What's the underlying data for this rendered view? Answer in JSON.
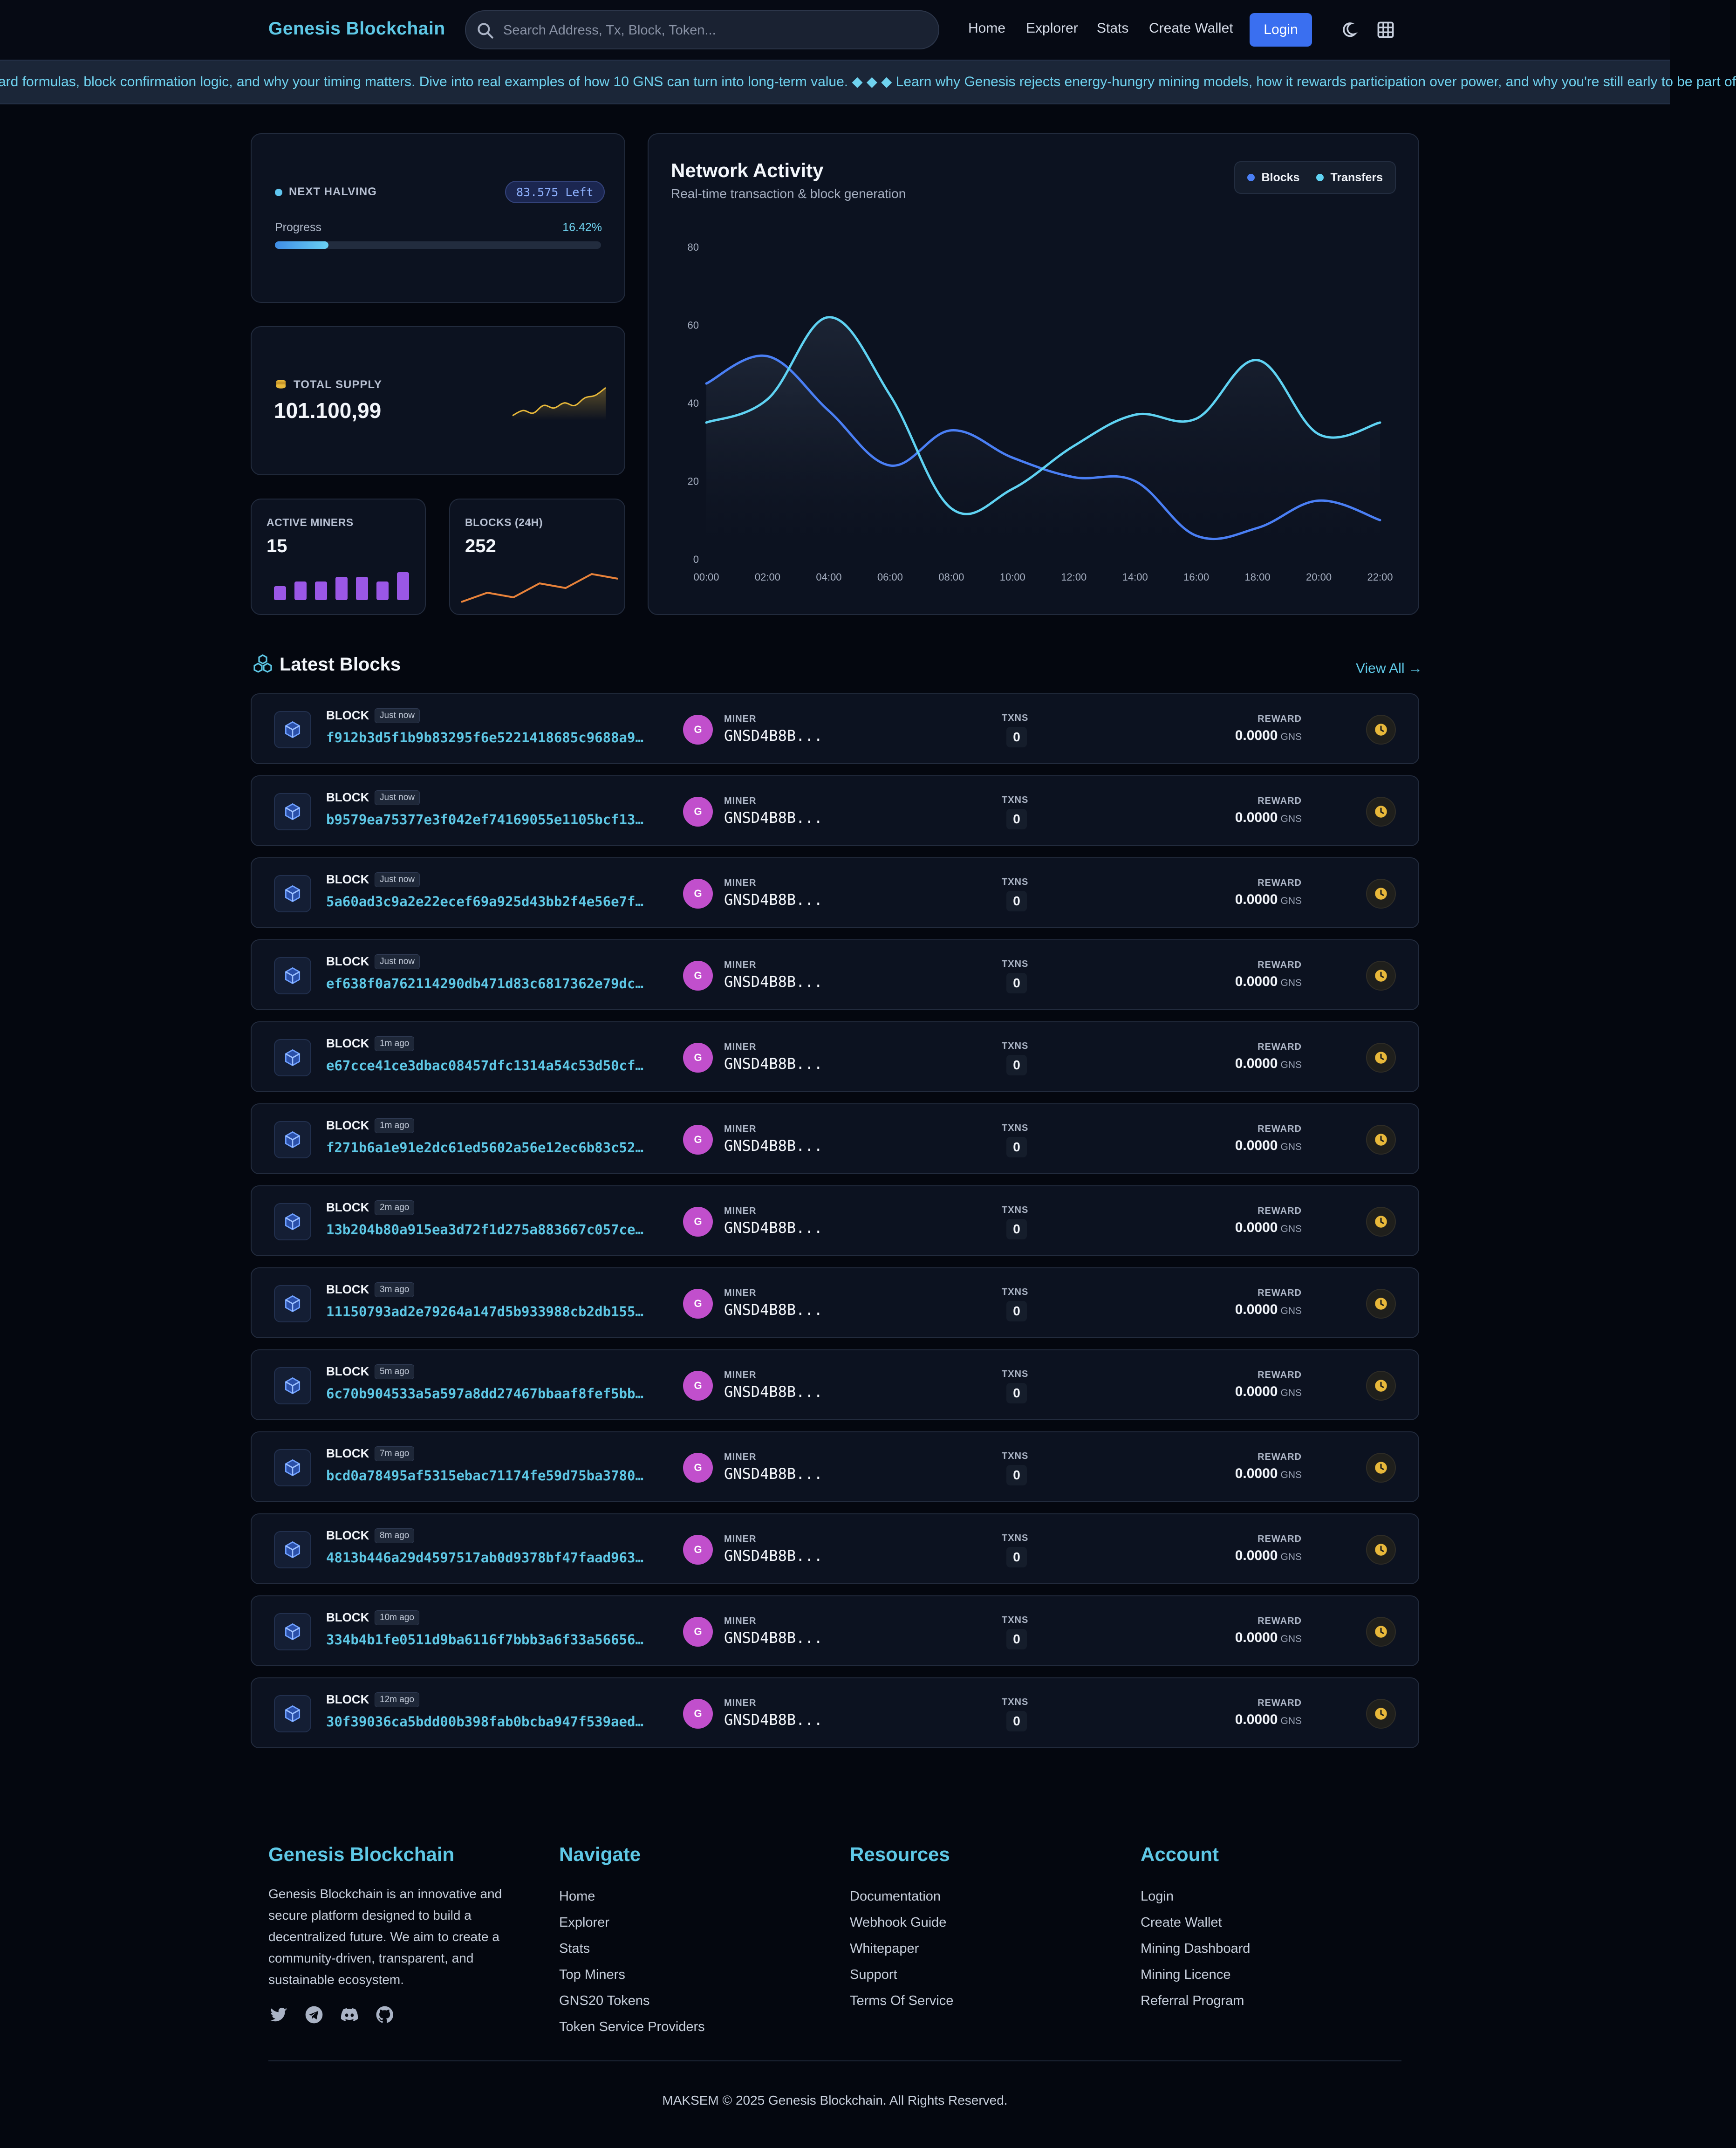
{
  "header": {
    "brand": "Genesis Blockchain",
    "search_placeholder": "Search Address, Tx, Block, Token...",
    "nav": [
      "Home",
      "Explorer",
      "Stats",
      "Create Wallet"
    ],
    "login": "Login"
  },
  "ticker": {
    "text": "ard formulas, block confirmation logic, and why your timing matters. Dive into real examples of how 10 GNS can turn into long-term value. ◆ ◆ ◆ Learn why Genesis rejects energy-hungry mining models, how it rewards participation over power, and why you're still early to be part of"
  },
  "halving": {
    "label": "NEXT HALVING",
    "left": "83.575 Left",
    "progress_label": "Progress",
    "progress_pct": "16.42%",
    "progress_value": 16.42
  },
  "supply": {
    "label": "TOTAL SUPPLY",
    "value": "101.100,99",
    "spark": [
      2,
      4,
      3,
      6,
      5,
      7,
      6,
      9,
      10,
      13
    ]
  },
  "miners": {
    "label": "ACTIVE MINERS",
    "value": "15",
    "bars": [
      3,
      4,
      4,
      5,
      5,
      4,
      6
    ]
  },
  "blocks24": {
    "label": "BLOCKS (24H)",
    "value": "252",
    "spark": [
      2,
      4,
      3,
      6,
      5,
      8,
      7
    ]
  },
  "chart_data": {
    "type": "area",
    "title": "Network Activity",
    "subtitle": "Real-time transaction & block generation",
    "x": [
      "00:00",
      "02:00",
      "04:00",
      "06:00",
      "08:00",
      "10:00",
      "12:00",
      "14:00",
      "16:00",
      "18:00",
      "20:00",
      "22:00"
    ],
    "yticks": [
      0,
      20,
      40,
      60,
      80
    ],
    "ylim": [
      0,
      80
    ],
    "legend_position": "top-right",
    "grid": false,
    "series": [
      {
        "name": "Blocks",
        "color": "#4a7ff5",
        "values": [
          45,
          52,
          38,
          24,
          33,
          26,
          21,
          20,
          6,
          8,
          15,
          10
        ]
      },
      {
        "name": "Transfers",
        "color": "#5fd3f3",
        "values": [
          35,
          41,
          62,
          42,
          13,
          18,
          29,
          37,
          36,
          51,
          32,
          35
        ]
      }
    ]
  },
  "latest": {
    "title": "Latest Blocks",
    "view_all": "View All →",
    "labels": {
      "block": "BLOCK",
      "miner": "MINER",
      "txns": "TXNS",
      "reward": "REWARD",
      "unit": "GNS"
    },
    "rows": [
      {
        "age": "Just now",
        "hash": "f912b3d5f1b9b83295f6e5221418685c9688a9…",
        "avatar": "G",
        "miner": "GNSD4B8B...",
        "txns": "0",
        "reward": "0.0000"
      },
      {
        "age": "Just now",
        "hash": "b9579ea75377e3f042ef74169055e1105bcf13…",
        "avatar": "G",
        "miner": "GNSD4B8B...",
        "txns": "0",
        "reward": "0.0000"
      },
      {
        "age": "Just now",
        "hash": "5a60ad3c9a2e22ecef69a925d43bb2f4e56e7f…",
        "avatar": "G",
        "miner": "GNSD4B8B...",
        "txns": "0",
        "reward": "0.0000"
      },
      {
        "age": "Just now",
        "hash": "ef638f0a762114290db471d83c6817362e79dc…",
        "avatar": "G",
        "miner": "GNSD4B8B...",
        "txns": "0",
        "reward": "0.0000"
      },
      {
        "age": "1m ago",
        "hash": "e67cce41ce3dbac08457dfc1314a54c53d50cf…",
        "avatar": "G",
        "miner": "GNSD4B8B...",
        "txns": "0",
        "reward": "0.0000"
      },
      {
        "age": "1m ago",
        "hash": "f271b6a1e91e2dc61ed5602a56e12ec6b83c52…",
        "avatar": "G",
        "miner": "GNSD4B8B...",
        "txns": "0",
        "reward": "0.0000"
      },
      {
        "age": "2m ago",
        "hash": "13b204b80a915ea3d72f1d275a883667c057ce…",
        "avatar": "G",
        "miner": "GNSD4B8B...",
        "txns": "0",
        "reward": "0.0000"
      },
      {
        "age": "3m ago",
        "hash": "11150793ad2e79264a147d5b933988cb2db155…",
        "avatar": "G",
        "miner": "GNSD4B8B...",
        "txns": "0",
        "reward": "0.0000"
      },
      {
        "age": "5m ago",
        "hash": "6c70b904533a5a597a8dd27467bbaaf8fef5bb…",
        "avatar": "G",
        "miner": "GNSD4B8B...",
        "txns": "0",
        "reward": "0.0000"
      },
      {
        "age": "7m ago",
        "hash": "bcd0a78495af5315ebac71174fe59d75ba3780…",
        "avatar": "G",
        "miner": "GNSD4B8B...",
        "txns": "0",
        "reward": "0.0000"
      },
      {
        "age": "8m ago",
        "hash": "4813b446a29d4597517ab0d9378bf47faad963…",
        "avatar": "G",
        "miner": "GNSD4B8B...",
        "txns": "0",
        "reward": "0.0000"
      },
      {
        "age": "10m ago",
        "hash": "334b4b1fe0511d9ba6116f7bbb3a6f33a56656…",
        "avatar": "G",
        "miner": "GNSD4B8B...",
        "txns": "0",
        "reward": "0.0000"
      },
      {
        "age": "12m ago",
        "hash": "30f39036ca5bdd00b398fab0bcba947f539aed…",
        "avatar": "G",
        "miner": "GNSD4B8B...",
        "txns": "0",
        "reward": "0.0000"
      }
    ]
  },
  "footer": {
    "about": {
      "title": "Genesis Blockchain",
      "text": "Genesis Blockchain is an innovative and secure platform designed to build a decentralized future. We aim to create a community-driven, transparent, and sustainable ecosystem.",
      "social": [
        "twitter-icon",
        "telegram-icon",
        "discord-icon",
        "github-icon"
      ]
    },
    "navigate": {
      "title": "Navigate",
      "links": [
        "Home",
        "Explorer",
        "Stats",
        "Top Miners",
        "GNS20 Tokens",
        "Token Service Providers"
      ]
    },
    "resources": {
      "title": "Resources",
      "links": [
        "Documentation",
        "Webhook Guide",
        "Whitepaper",
        "Support",
        "Terms Of Service"
      ]
    },
    "account": {
      "title": "Account",
      "links": [
        "Login",
        "Create Wallet",
        "Mining Dashboard",
        "Mining Licence",
        "Referral Program"
      ]
    },
    "copyright": "MAKSEM © 2025 Genesis Blockchain. All Rights Reserved."
  },
  "colors": {
    "accent": "#5ec8e6",
    "primary": "#3a6ff0",
    "avatar": "#c14fcc",
    "clock": "#e8b83a",
    "miner_bars": "#9a57e6",
    "blocks_spark": "#e8823a",
    "supply_spark": "#e8b83a"
  }
}
